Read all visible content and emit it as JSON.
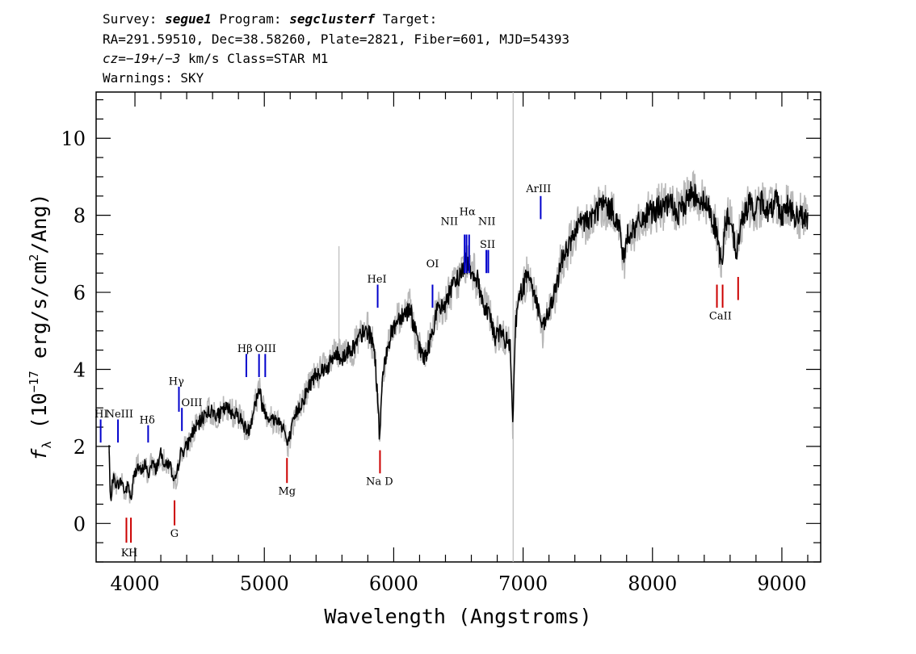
{
  "header": {
    "line1": {
      "a": "Survey: ",
      "survey": "segue1",
      "b": " Program: ",
      "program": "segclusterf",
      "c": " Target:"
    },
    "line2": "RA=291.59510, Dec=38.58260, Plate=2821, Fiber=601, MJD=54393",
    "line3": {
      "cz": "cz=−19+/−3",
      "rest": " km/s Class=STAR M1"
    },
    "line4": "Warnings: SKY"
  },
  "chart_data": {
    "type": "line",
    "xlabel": "Wavelength (Angstroms)",
    "ylabel": {
      "f": "f",
      "sub": "λ",
      "pre": " (10",
      "exp": "−17",
      "mid": " erg/s/cm",
      "exp2": "2",
      "post": "/Ang)"
    },
    "xlim": [
      3700,
      9300
    ],
    "ylim": [
      -1,
      11.2
    ],
    "xticks": [
      4000,
      5000,
      6000,
      7000,
      8000,
      9000
    ],
    "yticks": [
      0,
      2,
      4,
      6,
      8,
      10
    ],
    "series": [
      {
        "role": "flux",
        "color": "#000000",
        "points": [
          [
            3800,
            2.0
          ],
          [
            3810,
            0.5
          ],
          [
            3830,
            1.2
          ],
          [
            3860,
            1.0
          ],
          [
            3900,
            1.1
          ],
          [
            3920,
            0.8
          ],
          [
            3950,
            1.0
          ],
          [
            3970,
            0.6
          ],
          [
            3990,
            1.2
          ],
          [
            4020,
            1.5
          ],
          [
            4050,
            1.3
          ],
          [
            4080,
            1.6
          ],
          [
            4100,
            1.2
          ],
          [
            4130,
            1.6
          ],
          [
            4160,
            1.4
          ],
          [
            4200,
            1.8
          ],
          [
            4240,
            1.5
          ],
          [
            4270,
            1.6
          ],
          [
            4300,
            1.0
          ],
          [
            4320,
            1.2
          ],
          [
            4350,
            1.8
          ],
          [
            4400,
            2.0
          ],
          [
            4450,
            2.4
          ],
          [
            4500,
            2.6
          ],
          [
            4550,
            2.9
          ],
          [
            4600,
            2.9
          ],
          [
            4650,
            2.8
          ],
          [
            4700,
            3.0
          ],
          [
            4750,
            2.9
          ],
          [
            4800,
            2.8
          ],
          [
            4850,
            2.5
          ],
          [
            4880,
            2.4
          ],
          [
            4920,
            3.0
          ],
          [
            4960,
            3.5
          ],
          [
            4990,
            3.0
          ],
          [
            5050,
            2.7
          ],
          [
            5100,
            2.7
          ],
          [
            5150,
            2.5
          ],
          [
            5180,
            2.0
          ],
          [
            5200,
            2.3
          ],
          [
            5250,
            2.9
          ],
          [
            5300,
            3.2
          ],
          [
            5350,
            3.6
          ],
          [
            5400,
            3.9
          ],
          [
            5450,
            4.0
          ],
          [
            5500,
            4.1
          ],
          [
            5550,
            4.4
          ],
          [
            5600,
            4.3
          ],
          [
            5650,
            4.5
          ],
          [
            5700,
            4.6
          ],
          [
            5750,
            4.9
          ],
          [
            5800,
            5.0
          ],
          [
            5850,
            4.6
          ],
          [
            5880,
            3.0
          ],
          [
            5890,
            2.2
          ],
          [
            5910,
            3.6
          ],
          [
            5950,
            4.6
          ],
          [
            6000,
            5.1
          ],
          [
            6050,
            5.4
          ],
          [
            6100,
            5.5
          ],
          [
            6130,
            5.6
          ],
          [
            6150,
            5.2
          ],
          [
            6200,
            4.5
          ],
          [
            6250,
            4.3
          ],
          [
            6300,
            5.0
          ],
          [
            6330,
            5.5
          ],
          [
            6380,
            5.6
          ],
          [
            6420,
            5.9
          ],
          [
            6470,
            6.2
          ],
          [
            6520,
            6.5
          ],
          [
            6560,
            6.8
          ],
          [
            6600,
            6.6
          ],
          [
            6650,
            6.3
          ],
          [
            6700,
            5.6
          ],
          [
            6740,
            5.5
          ],
          [
            6780,
            4.8
          ],
          [
            6820,
            5.0
          ],
          [
            6850,
            4.8
          ],
          [
            6880,
            4.7
          ],
          [
            6900,
            4.6
          ],
          [
            6920,
            2.5
          ],
          [
            6940,
            5.2
          ],
          [
            6980,
            6.0
          ],
          [
            7020,
            6.3
          ],
          [
            7040,
            6.7
          ],
          [
            7070,
            6.1
          ],
          [
            7100,
            5.8
          ],
          [
            7130,
            5.4
          ],
          [
            7150,
            5.0
          ],
          [
            7200,
            5.5
          ],
          [
            7250,
            6.0
          ],
          [
            7300,
            6.9
          ],
          [
            7350,
            7.2
          ],
          [
            7400,
            7.5
          ],
          [
            7450,
            7.8
          ],
          [
            7500,
            7.9
          ],
          [
            7550,
            8.0
          ],
          [
            7600,
            8.3
          ],
          [
            7650,
            8.2
          ],
          [
            7700,
            8.1
          ],
          [
            7750,
            7.6
          ],
          [
            7780,
            6.7
          ],
          [
            7800,
            7.5
          ],
          [
            7850,
            7.6
          ],
          [
            7900,
            7.8
          ],
          [
            7950,
            8.0
          ],
          [
            8000,
            8.1
          ],
          [
            8050,
            8.2
          ],
          [
            8100,
            8.2
          ],
          [
            8150,
            8.3
          ],
          [
            8200,
            8.0
          ],
          [
            8250,
            8.3
          ],
          [
            8300,
            8.6
          ],
          [
            8350,
            8.5
          ],
          [
            8400,
            8.3
          ],
          [
            8450,
            8.1
          ],
          [
            8498,
            7.5
          ],
          [
            8540,
            6.6
          ],
          [
            8560,
            7.8
          ],
          [
            8600,
            8.0
          ],
          [
            8650,
            7.0
          ],
          [
            8700,
            8.0
          ],
          [
            8750,
            8.3
          ],
          [
            8800,
            8.1
          ],
          [
            8850,
            8.4
          ],
          [
            8900,
            8.0
          ],
          [
            8950,
            8.5
          ],
          [
            9000,
            8.0
          ],
          [
            9050,
            8.3
          ],
          [
            9100,
            7.9
          ],
          [
            9150,
            8.0
          ],
          [
            9200,
            7.8
          ]
        ]
      },
      {
        "role": "sky-spike",
        "color": "#bbbbbb",
        "segments": [
          [
            5577,
            4.5,
            7.2
          ],
          [
            6923,
            -1.0,
            11.2
          ]
        ]
      }
    ],
    "lines": [
      {
        "label": "HI",
        "x": 3735,
        "y1": 2.1,
        "y2": 2.7,
        "lx": 3740,
        "ly": 2.75,
        "color": "#0000cc"
      },
      {
        "label": "NeIII",
        "x": 3869,
        "y1": 2.1,
        "y2": 2.7,
        "lx": 3880,
        "ly": 2.75,
        "color": "#0000cc"
      },
      {
        "label": "Hδ",
        "x": 4102,
        "y1": 2.1,
        "y2": 2.55,
        "lx": 4095,
        "ly": 2.6,
        "color": "#0000cc"
      },
      {
        "label": "Hγ",
        "x": 4340,
        "y1": 2.9,
        "y2": 3.55,
        "lx": 4320,
        "ly": 3.6,
        "color": "#0000cc"
      },
      {
        "label": "OIII",
        "x": 4363,
        "y1": 2.4,
        "y2": 3.0,
        "lx": 4440,
        "ly": 3.05,
        "color": "#0000cc"
      },
      {
        "label": "Hβ",
        "x": 4861,
        "y1": 3.8,
        "y2": 4.4,
        "lx": 4850,
        "ly": 4.45,
        "color": "#0000cc"
      },
      {
        "label": "OIII",
        "x": 4959,
        "y1": 3.8,
        "y2": 4.4,
        "lx": 5010,
        "ly": 4.45,
        "color": "#0000cc"
      },
      {
        "label": "",
        "x": 5007,
        "y1": 3.8,
        "y2": 4.4,
        "lx": 0,
        "ly": 0,
        "color": "#0000cc"
      },
      {
        "label": "HeI",
        "x": 5876,
        "y1": 5.6,
        "y2": 6.2,
        "lx": 5870,
        "ly": 6.25,
        "color": "#0000cc"
      },
      {
        "label": "OI",
        "x": 6300,
        "y1": 5.6,
        "y2": 6.2,
        "lx": 6300,
        "ly": 6.65,
        "color": "#0000cc"
      },
      {
        "label": "NII",
        "x": 6548,
        "y1": 6.5,
        "y2": 7.5,
        "lx": 6430,
        "ly": 7.75,
        "color": "#0000cc"
      },
      {
        "label": "Hα",
        "x": 6563,
        "y1": 6.5,
        "y2": 7.5,
        "lx": 6570,
        "ly": 8.0,
        "color": "#0000cc"
      },
      {
        "label": "NII",
        "x": 6583,
        "y1": 6.5,
        "y2": 7.5,
        "lx": 6720,
        "ly": 7.75,
        "color": "#0000cc"
      },
      {
        "label": "SII",
        "x": 6716,
        "y1": 6.5,
        "y2": 7.1,
        "lx": 6725,
        "ly": 7.15,
        "color": "#0000cc"
      },
      {
        "label": "",
        "x": 6731,
        "y1": 6.5,
        "y2": 7.1,
        "lx": 0,
        "ly": 0,
        "color": "#0000cc"
      },
      {
        "label": "ArIII",
        "x": 7136,
        "y1": 7.9,
        "y2": 8.5,
        "lx": 7120,
        "ly": 8.6,
        "color": "#0000cc"
      },
      {
        "label": "K",
        "x": 3934,
        "y1": -0.5,
        "y2": 0.15,
        "lx": 3922,
        "ly": -0.85,
        "color": "#cc0000"
      },
      {
        "label": "H",
        "x": 3969,
        "y1": -0.5,
        "y2": 0.15,
        "lx": 3985,
        "ly": -0.85,
        "color": "#cc0000"
      },
      {
        "label": "G",
        "x": 4306,
        "y1": -0.05,
        "y2": 0.6,
        "lx": 4305,
        "ly": -0.35,
        "color": "#cc0000"
      },
      {
        "label": "Mg",
        "x": 5175,
        "y1": 1.05,
        "y2": 1.7,
        "lx": 5175,
        "ly": 0.75,
        "color": "#cc0000"
      },
      {
        "label": "Na D",
        "x": 5894,
        "y1": 1.3,
        "y2": 1.9,
        "lx": 5890,
        "ly": 1.0,
        "color": "#cc0000"
      },
      {
        "label": "CaII",
        "x": 8498,
        "y1": 5.6,
        "y2": 6.2,
        "lx": 8525,
        "ly": 5.3,
        "color": "#cc0000"
      },
      {
        "label": "",
        "x": 8542,
        "y1": 5.6,
        "y2": 6.2,
        "lx": 0,
        "ly": 0,
        "color": "#cc0000"
      },
      {
        "label": "",
        "x": 8662,
        "y1": 5.8,
        "y2": 6.4,
        "lx": 0,
        "ly": 0,
        "color": "#cc0000"
      }
    ]
  }
}
